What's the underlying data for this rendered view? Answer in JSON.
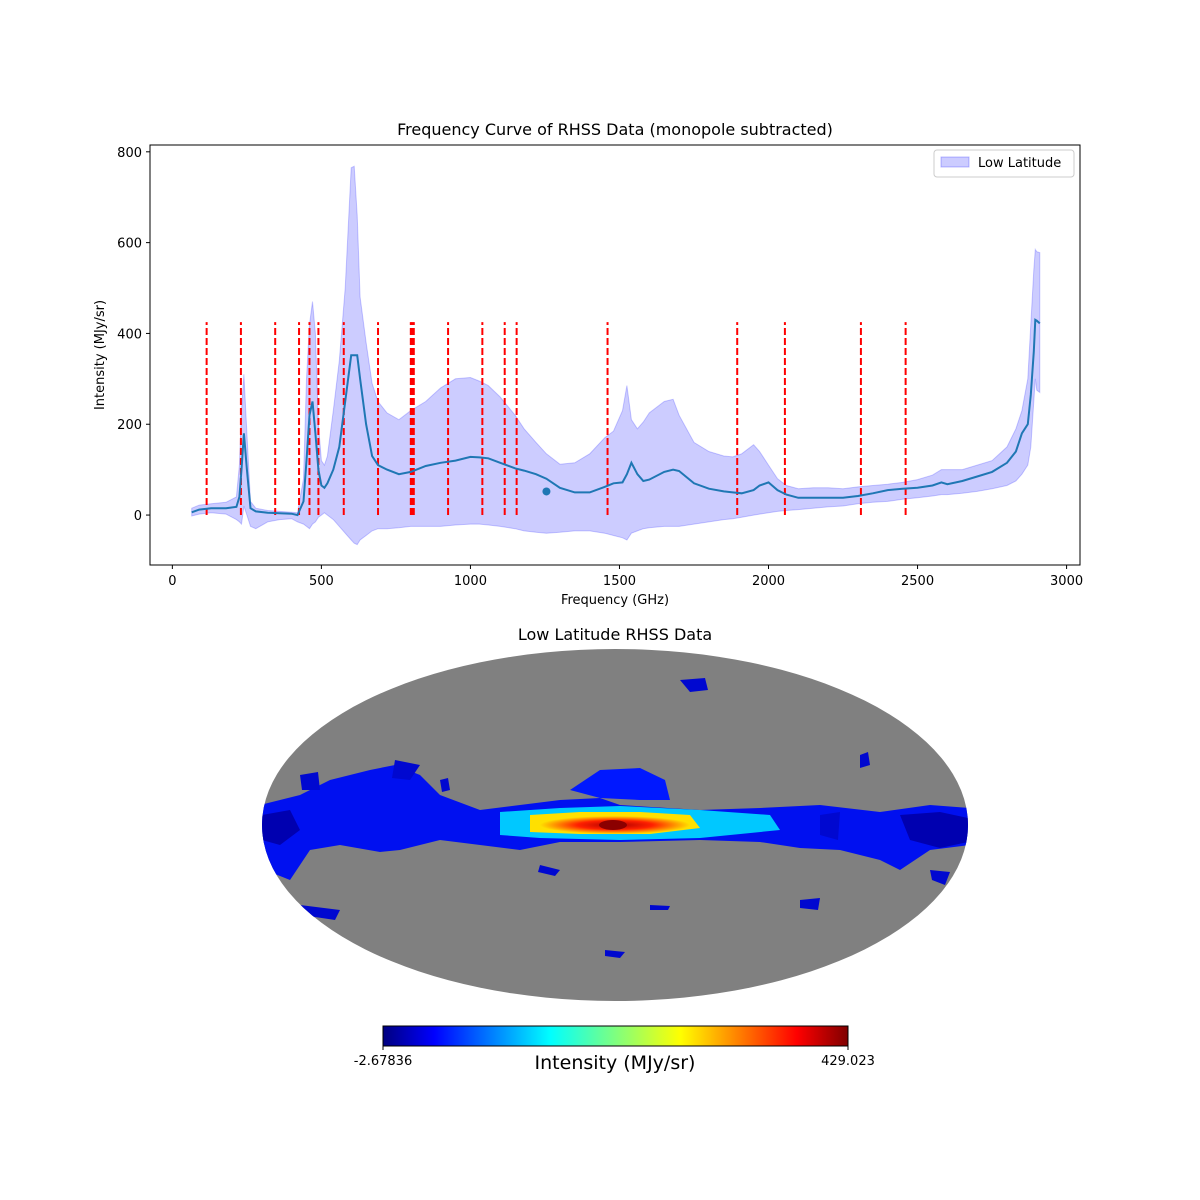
{
  "chart_data": [
    {
      "type": "line",
      "title": "Frequency Curve of RHSS Data (monopole subtracted)",
      "xlabel": "Frequency (GHz)",
      "ylabel": "Intensity (MJy/sr)",
      "xlim": [
        -75,
        3045
      ],
      "ylim": [
        -110,
        815
      ],
      "xticks": [
        0,
        500,
        1000,
        1500,
        2000,
        2500,
        3000
      ],
      "yticks": [
        0,
        200,
        400,
        600,
        800
      ],
      "legend": {
        "placement": "top-right",
        "entries": [
          "Low Latitude"
        ]
      },
      "colors": {
        "line": "#1f77b4",
        "band": "#0000ff",
        "vlines": "#ff0000"
      },
      "series": [
        {
          "kind": "mean",
          "x": [
            65,
            90,
            130,
            180,
            215,
            225,
            232,
            240,
            250,
            262,
            280,
            320,
            360,
            400,
            420,
            440,
            450,
            460,
            470,
            480,
            490,
            500,
            510,
            520,
            540,
            560,
            580,
            600,
            610,
            620,
            630,
            650,
            670,
            690,
            720,
            760,
            800,
            850,
            900,
            950,
            1000,
            1030,
            1060,
            1100,
            1150,
            1180,
            1220,
            1255,
            1300,
            1350,
            1400,
            1450,
            1480,
            1510,
            1525,
            1540,
            1560,
            1580,
            1600,
            1650,
            1680,
            1700,
            1750,
            1800,
            1850,
            1880,
            1910,
            1950,
            1970,
            2000,
            2030,
            2060,
            2100,
            2150,
            2200,
            2250,
            2300,
            2350,
            2400,
            2450,
            2500,
            2550,
            2580,
            2600,
            2650,
            2700,
            2750,
            2800,
            2830,
            2850,
            2870,
            2880,
            2890,
            2895,
            2900,
            2910
          ],
          "y": [
            6,
            12,
            15,
            15,
            18,
            40,
            100,
            180,
            100,
            15,
            8,
            5,
            4,
            3,
            0,
            30,
            120,
            220,
            250,
            180,
            100,
            65,
            60,
            70,
            100,
            150,
            250,
            352,
            352,
            352,
            300,
            200,
            130,
            110,
            100,
            90,
            95,
            108,
            115,
            120,
            128,
            127,
            125,
            115,
            103,
            98,
            90,
            80,
            60,
            50,
            50,
            62,
            70,
            72,
            90,
            115,
            90,
            75,
            78,
            95,
            100,
            97,
            70,
            58,
            52,
            50,
            48,
            55,
            65,
            72,
            55,
            45,
            38,
            38,
            38,
            38,
            42,
            48,
            55,
            58,
            60,
            65,
            72,
            68,
            75,
            85,
            95,
            115,
            140,
            180,
            200,
            265,
            360,
            430,
            428,
            422
          ]
        },
        {
          "kind": "band-upper",
          "x": [
            65,
            90,
            130,
            180,
            215,
            225,
            232,
            240,
            250,
            262,
            280,
            320,
            360,
            400,
            420,
            440,
            450,
            460,
            470,
            480,
            490,
            500,
            510,
            520,
            540,
            560,
            580,
            600,
            610,
            620,
            630,
            650,
            670,
            690,
            720,
            760,
            800,
            850,
            900,
            950,
            1000,
            1030,
            1060,
            1100,
            1150,
            1180,
            1220,
            1255,
            1300,
            1350,
            1400,
            1450,
            1480,
            1510,
            1525,
            1540,
            1560,
            1580,
            1600,
            1650,
            1680,
            1700,
            1750,
            1800,
            1850,
            1880,
            1910,
            1950,
            1970,
            2000,
            2030,
            2060,
            2100,
            2150,
            2200,
            2250,
            2300,
            2350,
            2400,
            2450,
            2500,
            2550,
            2580,
            2600,
            2650,
            2700,
            2750,
            2800,
            2830,
            2850,
            2870,
            2880,
            2890,
            2895,
            2900,
            2910
          ],
          "y": [
            15,
            22,
            25,
            28,
            40,
            110,
            230,
            310,
            180,
            30,
            15,
            10,
            8,
            6,
            5,
            80,
            300,
            420,
            470,
            400,
            200,
            120,
            110,
            130,
            230,
            340,
            500,
            765,
            768,
            660,
            480,
            380,
            290,
            250,
            225,
            210,
            230,
            250,
            280,
            300,
            303,
            295,
            285,
            260,
            220,
            190,
            160,
            135,
            112,
            115,
            135,
            170,
            185,
            230,
            285,
            210,
            190,
            205,
            225,
            250,
            255,
            220,
            160,
            140,
            130,
            128,
            135,
            155,
            140,
            110,
            80,
            65,
            58,
            60,
            60,
            58,
            62,
            65,
            68,
            72,
            78,
            88,
            100,
            100,
            100,
            110,
            120,
            150,
            190,
            230,
            300,
            420,
            540,
            585,
            580,
            578
          ]
        },
        {
          "kind": "band-lower",
          "x": [
            65,
            90,
            130,
            180,
            215,
            225,
            232,
            240,
            250,
            262,
            280,
            320,
            360,
            400,
            420,
            440,
            450,
            460,
            470,
            480,
            490,
            500,
            510,
            520,
            540,
            560,
            580,
            600,
            610,
            620,
            630,
            650,
            670,
            690,
            720,
            760,
            800,
            850,
            900,
            950,
            1000,
            1030,
            1060,
            1100,
            1150,
            1180,
            1220,
            1255,
            1300,
            1350,
            1400,
            1450,
            1480,
            1510,
            1525,
            1540,
            1560,
            1580,
            1600,
            1650,
            1680,
            1700,
            1750,
            1800,
            1850,
            1880,
            1910,
            1950,
            1970,
            2000,
            2030,
            2060,
            2100,
            2150,
            2200,
            2250,
            2300,
            2350,
            2400,
            2450,
            2500,
            2550,
            2580,
            2600,
            2650,
            2700,
            2750,
            2800,
            2830,
            2850,
            2870,
            2880,
            2890,
            2895,
            2900,
            2910
          ],
          "y": [
            -2,
            2,
            5,
            2,
            -10,
            -15,
            -20,
            20,
            0,
            -25,
            -30,
            -15,
            -10,
            -8,
            -15,
            -20,
            -25,
            -30,
            -20,
            -15,
            -5,
            0,
            5,
            0,
            -10,
            -25,
            -40,
            -55,
            -62,
            -65,
            -55,
            -45,
            -35,
            -30,
            -30,
            -28,
            -25,
            -25,
            -25,
            -22,
            -20,
            -20,
            -22,
            -25,
            -30,
            -35,
            -38,
            -40,
            -38,
            -35,
            -35,
            -40,
            -45,
            -50,
            -55,
            -40,
            -35,
            -30,
            -28,
            -25,
            -25,
            -25,
            -20,
            -15,
            -10,
            -8,
            -5,
            0,
            2,
            5,
            8,
            10,
            12,
            15,
            18,
            20,
            25,
            28,
            30,
            35,
            38,
            42,
            45,
            45,
            48,
            52,
            58,
            65,
            75,
            90,
            110,
            150,
            250,
            300,
            275,
            270
          ]
        }
      ],
      "vlines": {
        "x": [
          115,
          230,
          345,
          425,
          460,
          490,
          575,
          690,
          800,
          805,
          810,
          925,
          1040,
          1115,
          1155,
          1460,
          1895,
          2055,
          2310,
          2460
        ],
        "ymin": 0,
        "ymax": 425
      },
      "marker": {
        "x": 1255,
        "y": 52
      }
    },
    {
      "type": "heatmap",
      "title": "Low Latitude RHSS Data",
      "projection": "mollweide",
      "colorbar": {
        "min_label": "-2.67836",
        "max_label": "429.023",
        "label": "Intensity (MJy/sr)",
        "min": -2.67836,
        "max": 429.023,
        "colormap": "jet"
      },
      "background_color": "#808080"
    }
  ]
}
